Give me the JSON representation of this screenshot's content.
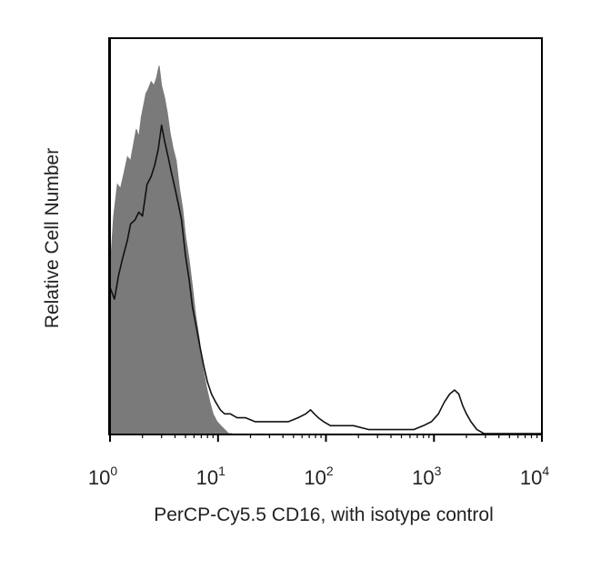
{
  "chart_data": {
    "type": "area",
    "xlabel": "PerCP-Cy5.5 CD16, with isotype control",
    "ylabel": "Relative Cell Number",
    "x_scale": "log",
    "xlim": [
      1,
      10000
    ],
    "ylim": [
      0,
      100
    ],
    "x_ticks": [
      {
        "base": "10",
        "exp": "0",
        "value": 1
      },
      {
        "base": "10",
        "exp": "1",
        "value": 10
      },
      {
        "base": "10",
        "exp": "2",
        "value": 100
      },
      {
        "base": "10",
        "exp": "3",
        "value": 1000
      },
      {
        "base": "10",
        "exp": "4",
        "value": 10000
      }
    ],
    "grid": false,
    "series": [
      {
        "role": "isotype control (filled)",
        "color": "#7a7a7a",
        "x": [
          1.0,
          1.08,
          1.17,
          1.25,
          1.35,
          1.45,
          1.55,
          1.65,
          1.75,
          1.85,
          1.95,
          2.05,
          2.15,
          2.25,
          2.4,
          2.55,
          2.7,
          2.85,
          3.0,
          3.2,
          3.4,
          3.6,
          3.85,
          4.1,
          4.4,
          4.7,
          5.0,
          5.4,
          5.8,
          6.2,
          6.7,
          7.2,
          7.8,
          8.4,
          9.0,
          9.8,
          10.6,
          11.5,
          12.5,
          13.5
        ],
        "y": [
          41,
          55,
          63,
          62,
          66,
          70,
          69,
          73,
          77,
          75,
          80,
          83,
          86,
          87,
          89,
          88,
          90,
          93,
          88,
          85,
          81,
          76,
          72,
          69,
          62,
          57,
          50,
          44,
          37,
          30,
          24,
          17,
          12,
          8,
          5,
          3,
          2,
          1,
          0,
          0
        ]
      },
      {
        "role": "PerCP-Cy5.5 CD16 (outline)",
        "color": "#111111",
        "x": [
          1.0,
          1.1,
          1.2,
          1.3,
          1.45,
          1.55,
          1.7,
          1.85,
          2.0,
          2.2,
          2.4,
          2.6,
          2.8,
          3.0,
          3.2,
          3.45,
          3.7,
          4.0,
          4.3,
          4.6,
          5.0,
          5.4,
          5.8,
          6.3,
          6.8,
          7.4,
          8.0,
          8.7,
          9.5,
          10.5,
          11.5,
          13,
          15,
          18,
          22,
          28,
          35,
          45,
          55,
          65,
          72,
          78,
          85,
          95,
          110,
          140,
          180,
          250,
          350,
          500,
          650,
          800,
          950,
          1100,
          1250,
          1400,
          1550,
          1700,
          1850,
          2000,
          2200,
          2500,
          2900,
          3500,
          5000,
          10000
        ],
        "y": [
          37,
          34,
          40,
          44,
          49,
          53,
          54,
          56,
          55,
          63,
          65,
          68,
          72,
          78,
          74,
          70,
          66,
          62,
          58,
          54,
          45,
          39,
          32,
          27,
          22,
          17,
          13,
          10,
          8,
          6,
          5,
          5,
          4,
          4,
          3,
          3,
          3,
          3,
          4,
          5,
          6,
          5,
          4,
          3,
          2,
          2,
          2,
          1,
          1,
          1,
          1,
          2,
          3,
          5,
          8,
          10,
          11,
          10,
          7,
          5,
          3,
          1,
          0,
          0,
          0,
          0
        ]
      }
    ]
  }
}
